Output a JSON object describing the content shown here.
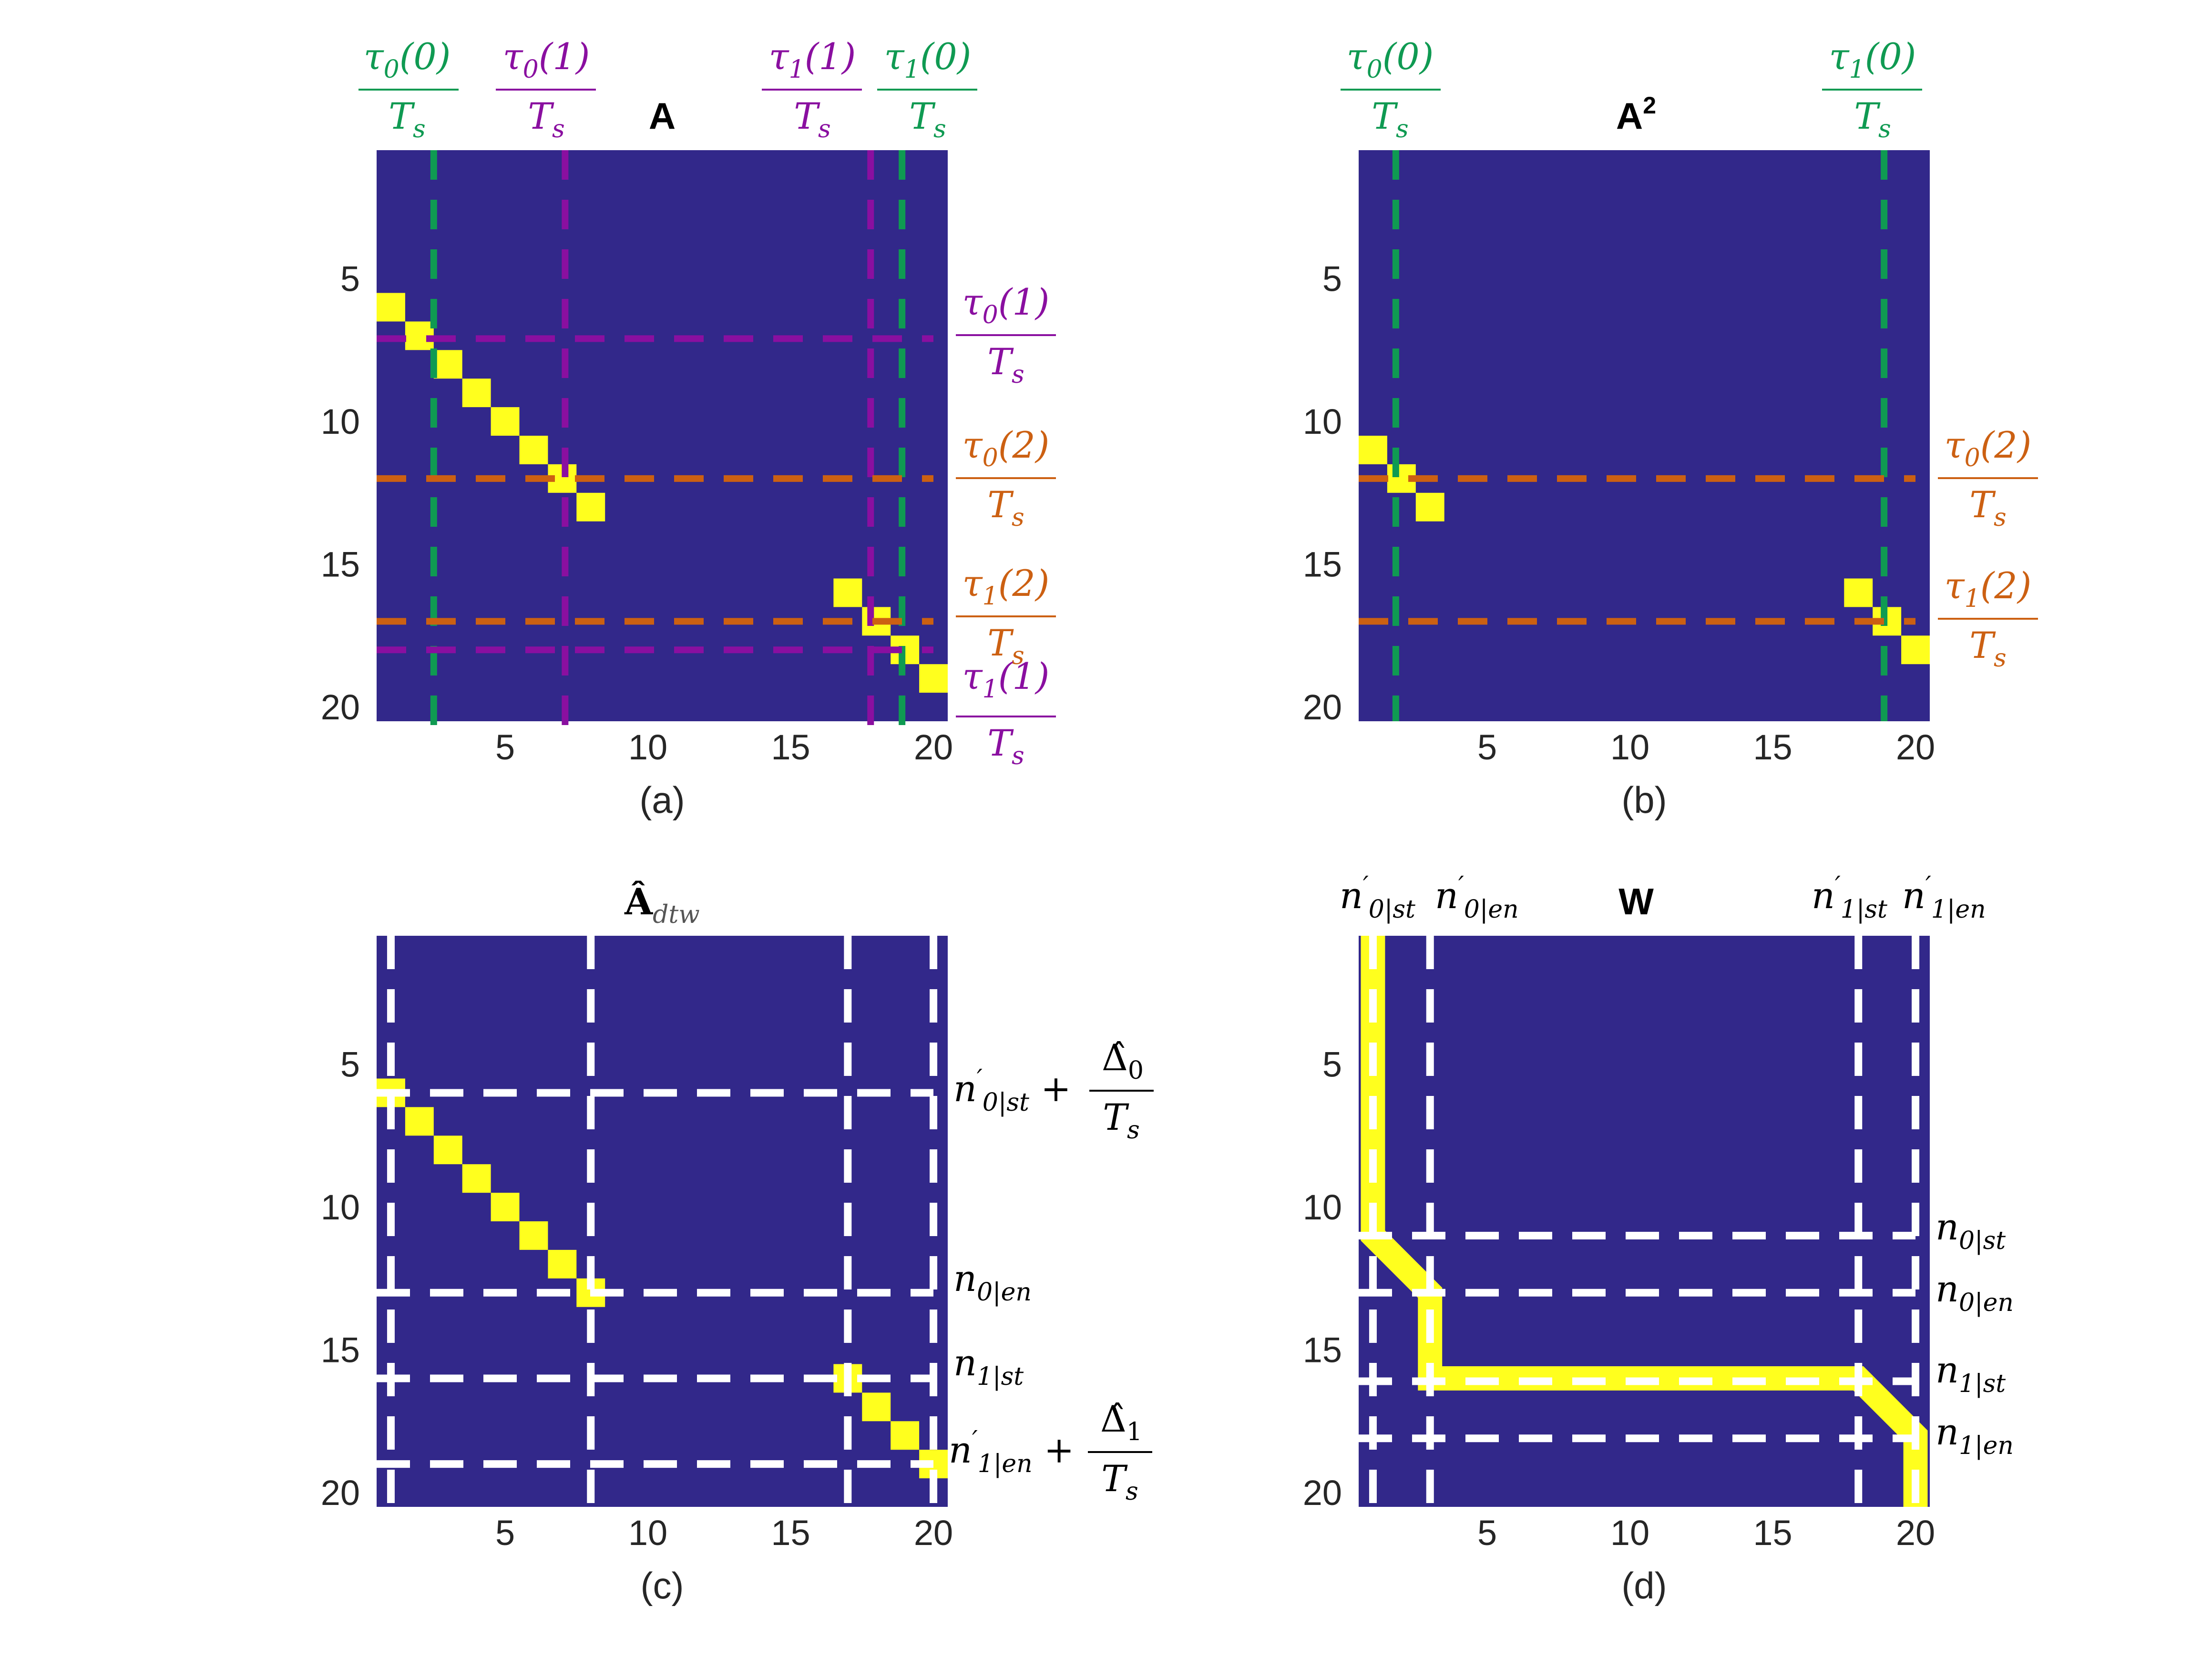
{
  "colors": {
    "background": "#32288a",
    "cell": "#ffff1e",
    "green": "#0f9a52",
    "purple": "#8a0fa0",
    "orange": "#cc6012",
    "white": "#ffffff"
  },
  "chart_data": [
    {
      "id": "a",
      "type": "heatmap",
      "title": "A",
      "caption": "(a)",
      "xlim": [
        0.5,
        20.5
      ],
      "ylim": [
        0.5,
        20.5
      ],
      "xticks": [
        5,
        10,
        15,
        20
      ],
      "yticks": [
        5,
        10,
        15,
        20
      ],
      "cells": [
        [
          1,
          6
        ],
        [
          2,
          7
        ],
        [
          3,
          8
        ],
        [
          4,
          9
        ],
        [
          5,
          10
        ],
        [
          6,
          11
        ],
        [
          7,
          12
        ],
        [
          8,
          13
        ],
        [
          17,
          16
        ],
        [
          18,
          17
        ],
        [
          19,
          18
        ],
        [
          20,
          19
        ]
      ],
      "vlines": [
        {
          "x": 2.5,
          "color": "green",
          "label": "τ0(0)"
        },
        {
          "x": 7.1,
          "color": "purple",
          "label": "τ0(1)"
        },
        {
          "x": 17.8,
          "color": "purple",
          "label": "τ1(1)"
        },
        {
          "x": 18.9,
          "color": "green",
          "label": "τ1(0)"
        }
      ],
      "hlines": [
        {
          "y": 7.1,
          "color": "purple",
          "label": "τ0(1)"
        },
        {
          "y": 12.0,
          "color": "orange",
          "label": "τ0(2)"
        },
        {
          "y": 17.0,
          "color": "orange",
          "label": "τ1(2)"
        },
        {
          "y": 18.0,
          "color": "purple",
          "label": "τ1(1)"
        }
      ]
    },
    {
      "id": "b",
      "type": "heatmap",
      "title": "A",
      "title_sup": "2",
      "caption": "(b)",
      "xlim": [
        0.5,
        20.5
      ],
      "ylim": [
        0.5,
        20.5
      ],
      "xticks": [
        5,
        10,
        15,
        20
      ],
      "yticks": [
        5,
        10,
        15,
        20
      ],
      "cells": [
        [
          1,
          11
        ],
        [
          2,
          12
        ],
        [
          3,
          13
        ],
        [
          18,
          16
        ],
        [
          19,
          17
        ],
        [
          20,
          18
        ]
      ],
      "vlines": [
        {
          "x": 1.8,
          "color": "green",
          "label": "τ0(0)"
        },
        {
          "x": 18.9,
          "color": "green",
          "label": "τ1(0)"
        }
      ],
      "hlines": [
        {
          "y": 12.0,
          "color": "orange",
          "label": "τ0(2)"
        },
        {
          "y": 17.0,
          "color": "orange",
          "label": "τ1(2)"
        }
      ]
    },
    {
      "id": "c",
      "type": "heatmap",
      "title": "Â",
      "title_sub": "dtw",
      "caption": "(c)",
      "xlim": [
        0.5,
        20.5
      ],
      "ylim": [
        0.5,
        20.5
      ],
      "xticks": [
        5,
        10,
        15,
        20
      ],
      "yticks": [
        5,
        10,
        15,
        20
      ],
      "cells": [
        [
          1,
          6
        ],
        [
          2,
          7
        ],
        [
          3,
          8
        ],
        [
          4,
          9
        ],
        [
          5,
          10
        ],
        [
          6,
          11
        ],
        [
          7,
          12
        ],
        [
          8,
          13
        ],
        [
          17,
          16
        ],
        [
          18,
          17
        ],
        [
          19,
          18
        ],
        [
          20,
          19
        ]
      ],
      "vlines": [
        {
          "x": 1.0,
          "color": "white"
        },
        {
          "x": 8.0,
          "color": "white"
        },
        {
          "x": 17.0,
          "color": "white"
        },
        {
          "x": 20.0,
          "color": "white"
        }
      ],
      "hlines": [
        {
          "y": 6.0,
          "color": "white",
          "label": "n'0|st + Δ̂0/Ts"
        },
        {
          "y": 13.0,
          "color": "white",
          "label": "n0|en"
        },
        {
          "y": 16.0,
          "color": "white",
          "label": "n1|st"
        },
        {
          "y": 19.0,
          "color": "white",
          "label": "n'1|en + Δ̂1/Ts"
        }
      ]
    },
    {
      "id": "d",
      "type": "heatmap",
      "title": "W",
      "caption": "(d)",
      "xlim": [
        0.5,
        20.5
      ],
      "ylim": [
        0.5,
        20.5
      ],
      "xticks": [
        5,
        10,
        15,
        20
      ],
      "yticks": [
        5,
        10,
        15,
        20
      ],
      "path": [
        [
          1,
          0.5
        ],
        [
          1,
          11
        ],
        [
          2,
          12
        ],
        [
          3,
          13
        ],
        [
          3,
          16
        ],
        [
          18,
          16
        ],
        [
          19,
          17
        ],
        [
          20,
          18
        ],
        [
          20,
          20.5
        ]
      ],
      "vlines": [
        {
          "x": 1.0,
          "color": "white",
          "label": "n'0|st"
        },
        {
          "x": 3.0,
          "color": "white",
          "label": "n'0|en"
        },
        {
          "x": 18.0,
          "color": "white",
          "label": "n'1|st"
        },
        {
          "x": 20.0,
          "color": "white",
          "label": "n'1|en"
        }
      ],
      "hlines": [
        {
          "y": 11.0,
          "color": "white",
          "label": "n0|st"
        },
        {
          "y": 13.0,
          "color": "white",
          "label": "n0|en"
        },
        {
          "y": 16.1,
          "color": "white",
          "label": "n1|st"
        },
        {
          "y": 18.1,
          "color": "white",
          "label": "n1|en"
        }
      ]
    }
  ]
}
